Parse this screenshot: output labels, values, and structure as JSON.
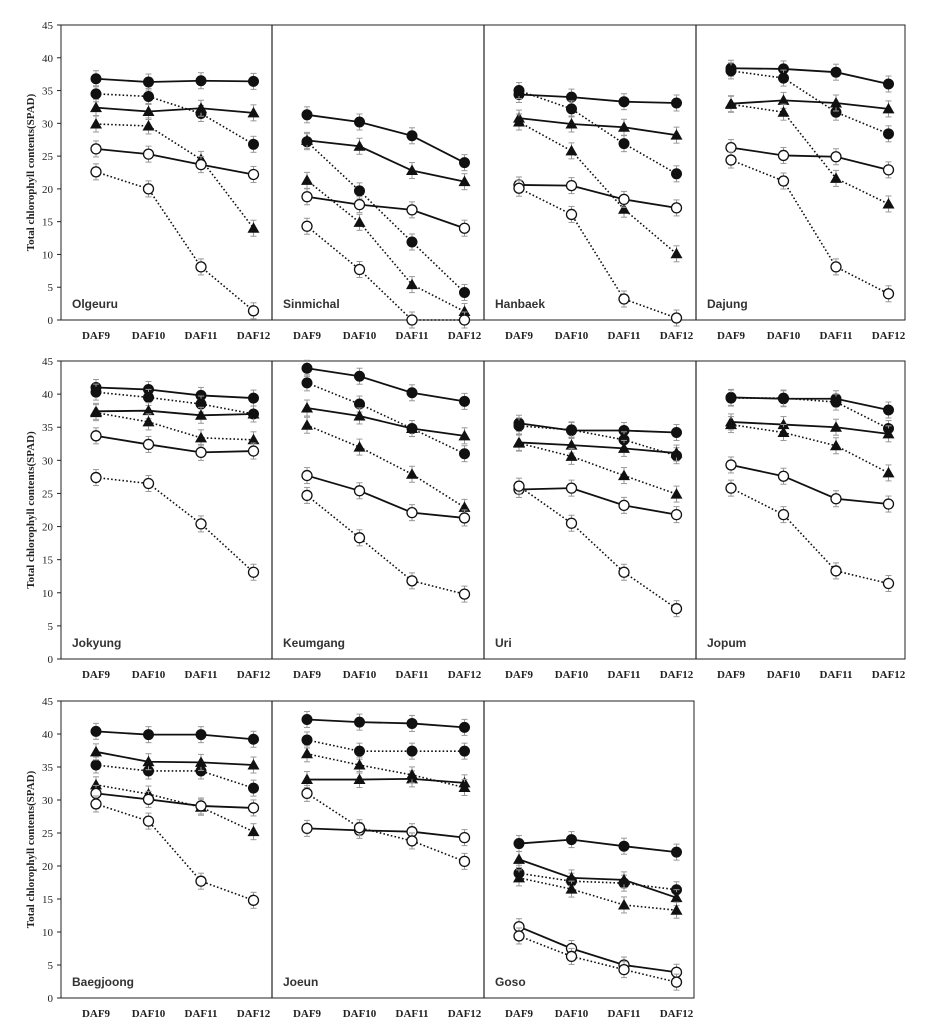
{
  "chart_data": {
    "type": "line",
    "ylabel": "Total chlorophyll contents(SPAD)",
    "categories": [
      "DAF9",
      "DAF10",
      "DAF11",
      "DAF12"
    ],
    "ylim": [
      0,
      45
    ],
    "yticks": [
      0,
      5,
      10,
      15,
      20,
      25,
      30,
      35,
      40,
      45
    ],
    "grid": false,
    "legend": "none",
    "series_styles": [
      {
        "marker": "filled-circle",
        "line": "solid"
      },
      {
        "marker": "filled-circle",
        "line": "dotted"
      },
      {
        "marker": "filled-triangle",
        "line": "solid"
      },
      {
        "marker": "filled-triangle",
        "line": "dotted"
      },
      {
        "marker": "open-circle",
        "line": "solid"
      },
      {
        "marker": "open-circle",
        "line": "dotted"
      }
    ],
    "panels": [
      {
        "title": "Olgeuru",
        "series": [
          [
            36.8,
            36.3,
            36.5,
            36.4
          ],
          [
            34.5,
            34.1,
            31.5,
            26.8
          ],
          [
            32.4,
            31.8,
            32.3,
            31.6
          ],
          [
            29.9,
            29.6,
            24.5,
            14.0
          ],
          [
            26.1,
            25.3,
            23.7,
            22.2
          ],
          [
            22.6,
            20.0,
            8.1,
            1.4
          ]
        ]
      },
      {
        "title": "Sinmichal",
        "series": [
          [
            31.3,
            30.2,
            28.1,
            24.0
          ],
          [
            27.2,
            19.7,
            11.9,
            4.2
          ],
          [
            27.4,
            26.5,
            22.8,
            21.1
          ],
          [
            21.3,
            14.9,
            5.4,
            1.3
          ],
          [
            18.8,
            17.6,
            16.8,
            14.0
          ],
          [
            14.3,
            7.7,
            0.0,
            0.0
          ]
        ]
      },
      {
        "title": "Hanbaek",
        "series": [
          [
            34.4,
            34.0,
            33.3,
            33.1
          ],
          [
            35.0,
            32.2,
            26.9,
            22.3
          ],
          [
            30.8,
            29.9,
            29.4,
            28.2
          ],
          [
            30.2,
            25.8,
            16.9,
            10.1
          ],
          [
            20.6,
            20.5,
            18.4,
            17.1
          ],
          [
            20.1,
            16.1,
            3.2,
            0.3
          ]
        ]
      },
      {
        "title": "Dajung",
        "series": [
          [
            38.4,
            38.3,
            37.8,
            36.0
          ],
          [
            38.0,
            36.9,
            31.7,
            28.4
          ],
          [
            33.0,
            33.5,
            33.1,
            32.2
          ],
          [
            32.9,
            31.7,
            21.6,
            17.7
          ],
          [
            26.3,
            25.1,
            24.9,
            22.9
          ],
          [
            24.4,
            21.2,
            8.1,
            4.0
          ]
        ]
      },
      {
        "title": "Jokyung",
        "series": [
          [
            41.0,
            40.7,
            39.8,
            39.4
          ],
          [
            40.3,
            39.5,
            38.5,
            37.0
          ],
          [
            37.4,
            37.5,
            36.8,
            37.0
          ],
          [
            37.2,
            35.8,
            33.4,
            33.1
          ],
          [
            33.7,
            32.4,
            31.2,
            31.4
          ],
          [
            27.4,
            26.5,
            20.4,
            13.1
          ]
        ]
      },
      {
        "title": "Keumgang",
        "series": [
          [
            43.9,
            42.7,
            40.2,
            38.9
          ],
          [
            41.7,
            38.5,
            34.8,
            31.0
          ],
          [
            37.9,
            36.7,
            34.8,
            33.7
          ],
          [
            35.3,
            32.0,
            27.9,
            22.9
          ],
          [
            27.7,
            25.4,
            22.1,
            21.3
          ],
          [
            24.7,
            18.3,
            11.8,
            9.8
          ]
        ]
      },
      {
        "title": "Uri",
        "series": [
          [
            35.6,
            34.5,
            34.5,
            34.2
          ],
          [
            35.2,
            34.6,
            33.1,
            30.7
          ],
          [
            32.7,
            32.3,
            31.8,
            31.1
          ],
          [
            32.6,
            30.6,
            27.7,
            24.9
          ],
          [
            25.6,
            25.8,
            23.2,
            21.8
          ],
          [
            26.1,
            20.5,
            13.1,
            7.6
          ]
        ]
      },
      {
        "title": "Jopum",
        "series": [
          [
            39.5,
            39.3,
            39.3,
            37.6
          ],
          [
            39.4,
            39.4,
            38.8,
            34.8
          ],
          [
            35.8,
            35.4,
            35.0,
            34.0
          ],
          [
            35.4,
            34.2,
            32.2,
            28.1
          ],
          [
            29.3,
            27.6,
            24.2,
            23.4
          ],
          [
            25.8,
            21.8,
            13.3,
            11.4
          ]
        ]
      },
      {
        "title": "Baegjoong",
        "series": [
          [
            40.4,
            39.9,
            39.9,
            39.2
          ],
          [
            35.3,
            34.4,
            34.4,
            31.8
          ],
          [
            37.3,
            35.8,
            35.7,
            35.3
          ],
          [
            32.3,
            30.9,
            28.9,
            25.2
          ],
          [
            31.0,
            30.1,
            29.1,
            28.8
          ],
          [
            29.4,
            26.8,
            17.7,
            14.8
          ]
        ]
      },
      {
        "title": "Joeun",
        "series": [
          [
            42.2,
            41.8,
            41.6,
            41.0
          ],
          [
            39.1,
            37.4,
            37.4,
            37.4
          ],
          [
            33.1,
            33.1,
            33.2,
            32.6
          ],
          [
            37.0,
            35.3,
            33.8,
            31.9
          ],
          [
            25.7,
            25.4,
            25.2,
            24.3
          ],
          [
            31.0,
            25.8,
            23.8,
            20.7
          ]
        ]
      },
      {
        "title": "Goso",
        "series": [
          [
            23.4,
            24.0,
            23.0,
            22.1
          ],
          [
            18.9,
            17.7,
            17.4,
            16.4
          ],
          [
            21.0,
            18.2,
            17.9,
            15.2
          ],
          [
            18.2,
            16.5,
            14.1,
            13.3
          ],
          [
            10.8,
            7.5,
            5.0,
            3.9
          ],
          [
            9.4,
            6.3,
            4.3,
            2.4
          ]
        ]
      }
    ]
  }
}
